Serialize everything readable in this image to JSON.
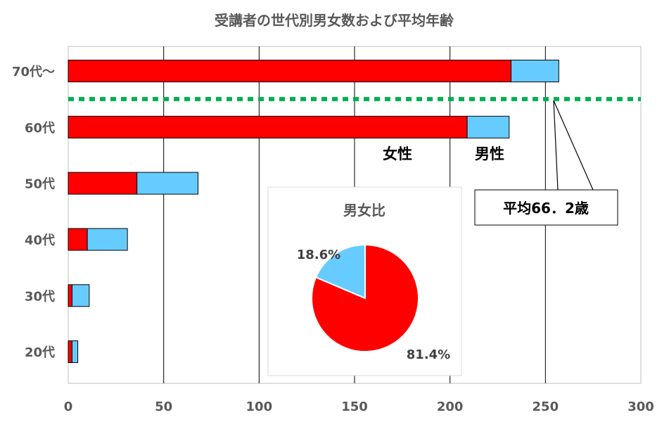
{
  "chart_data": {
    "type": "bar",
    "orientation": "horizontal",
    "stacked": true,
    "title": "受講者の世代別男女数および平均年齢",
    "categories": [
      "70代～",
      "60代",
      "50代",
      "40代",
      "30代",
      "20代"
    ],
    "series": [
      {
        "name": "女性",
        "color": "#ff0000",
        "values": [
          232,
          209,
          36,
          10,
          2,
          2
        ]
      },
      {
        "name": "男性",
        "color": "#66ccff",
        "values": [
          25,
          22,
          32,
          21,
          9,
          3
        ]
      }
    ],
    "xlim": [
      0,
      300
    ],
    "xticks": [
      "0",
      "50",
      "100",
      "150",
      "200",
      "250",
      "300"
    ],
    "grid": true,
    "average_line": {
      "color": "#00b050",
      "position_between": [
        "70代～",
        "60代"
      ]
    },
    "callout": {
      "label": "平均66．2歳"
    },
    "inset_pie": {
      "title": "男女比",
      "slices": [
        {
          "name": "女性",
          "value": 81.4,
          "label": "81.4%",
          "color": "#ff0000"
        },
        {
          "name": "男性",
          "value": 18.6,
          "label": "18.6%",
          "color": "#66ccff"
        }
      ]
    }
  }
}
